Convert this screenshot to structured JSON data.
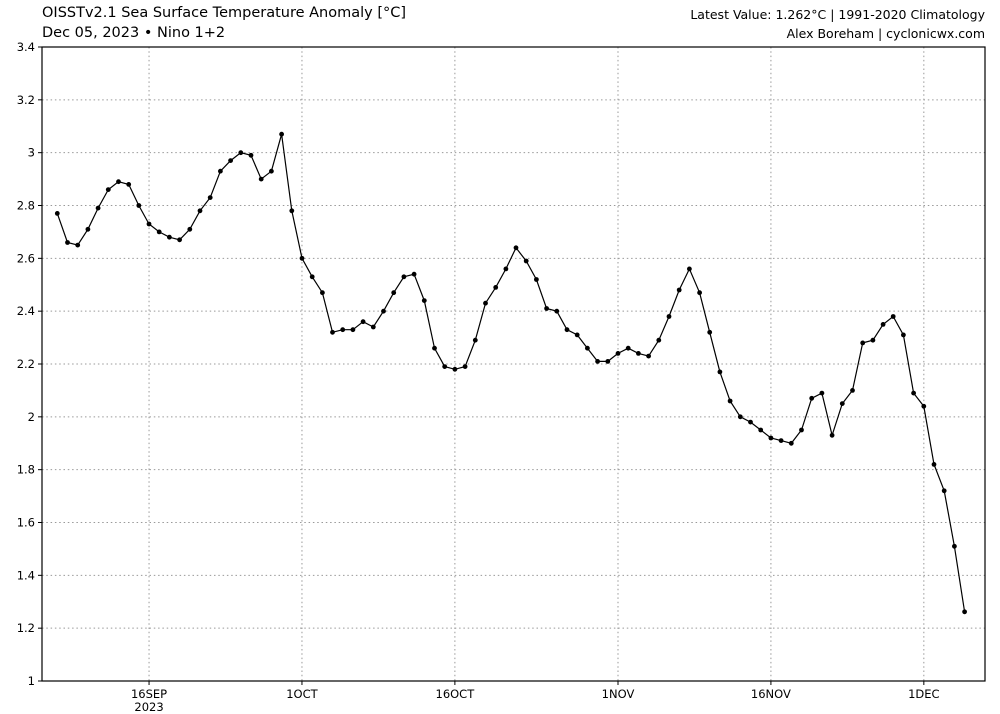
{
  "header": {
    "title": "OISSTv2.1 Sea Surface Temperature Anomaly [°C]",
    "subtitle": "Dec 05, 2023 • Nino 1+2",
    "latest_value": "Latest Value: 1.262°C | 1991-2020 Climatology",
    "credit": "Alex Boreham | cyclonicwx.com"
  },
  "chart_data": {
    "type": "line",
    "title": "OISSTv2.1 Sea Surface Temperature Anomaly [°C]",
    "series_name": "Nino 1+2 daily SST anomaly (°C), 1991-2020 climatology",
    "x_start_date": "2023-09-07",
    "x_end_date": "2023-12-05",
    "x_frequency": "daily",
    "latest_value": 1.262,
    "ylim": [
      1.0,
      3.4
    ],
    "ytick_step": 0.2,
    "yticks": [
      1,
      1.2,
      1.4,
      1.6,
      1.8,
      2,
      2.2,
      2.4,
      2.6,
      2.8,
      3,
      3.2,
      3.4
    ],
    "ytick_labels": [
      "1",
      "1.2",
      "1.4",
      "1.6",
      "1.8",
      "2",
      "2.2",
      "2.4",
      "2.6",
      "2.8",
      "3",
      "3.2",
      "3.4"
    ],
    "x_domain_days": [
      -1.5,
      91
    ],
    "x_ticks": [
      {
        "label": "16SEP",
        "sublabel": "2023",
        "day": 9
      },
      {
        "label": "1OCT",
        "day": 24
      },
      {
        "label": "16OCT",
        "day": 39
      },
      {
        "label": "1NOV",
        "day": 55
      },
      {
        "label": "16NOV",
        "day": 70
      },
      {
        "label": "1DEC",
        "day": 85
      }
    ],
    "grid": "dashed",
    "legend": "none",
    "line_color": "#000000",
    "grid_color": "#999999",
    "marker": "circle",
    "values": [
      2.77,
      2.66,
      2.65,
      2.71,
      2.79,
      2.86,
      2.89,
      2.88,
      2.8,
      2.73,
      2.7,
      2.68,
      2.67,
      2.71,
      2.78,
      2.83,
      2.93,
      2.97,
      3.0,
      2.99,
      2.9,
      2.93,
      3.07,
      2.78,
      2.6,
      2.53,
      2.47,
      2.32,
      2.33,
      2.33,
      2.36,
      2.34,
      2.4,
      2.47,
      2.53,
      2.54,
      2.44,
      2.26,
      2.19,
      2.18,
      2.19,
      2.29,
      2.43,
      2.49,
      2.56,
      2.64,
      2.59,
      2.52,
      2.41,
      2.4,
      2.33,
      2.31,
      2.26,
      2.21,
      2.21,
      2.24,
      2.26,
      2.24,
      2.23,
      2.29,
      2.38,
      2.48,
      2.56,
      2.47,
      2.32,
      2.17,
      2.06,
      2.0,
      1.98,
      1.95,
      1.92,
      1.91,
      1.9,
      1.95,
      2.07,
      2.09,
      1.93,
      2.05,
      2.1,
      2.28,
      2.29,
      2.35,
      2.38,
      2.31,
      2.09,
      2.04,
      1.82,
      1.72,
      1.51,
      1.262
    ]
  }
}
